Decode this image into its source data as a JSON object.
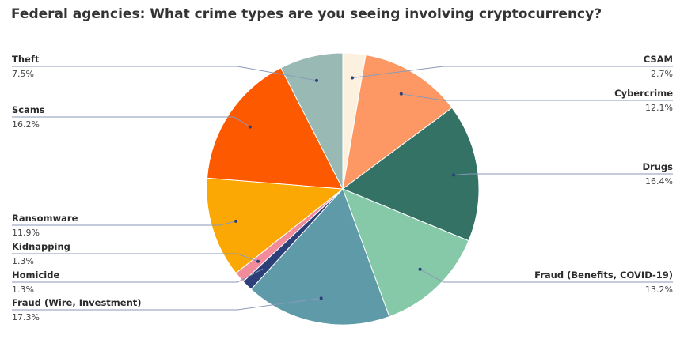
{
  "chart_data": {
    "type": "pie",
    "title": "Federal agencies: What crime types are you seeing involving cryptocurrency?",
    "slices": [
      {
        "label": "CSAM",
        "percent_label": "2.7%",
        "value": 2.7,
        "color": "#fcf1df",
        "side": "right"
      },
      {
        "label": "Cybercrime",
        "percent_label": "12.1%",
        "value": 12.1,
        "color": "#fd9865",
        "side": "right"
      },
      {
        "label": "Drugs",
        "percent_label": "16.4%",
        "value": 16.4,
        "color": "#337265",
        "side": "right"
      },
      {
        "label": "Fraud (Benefits, COVID-19)",
        "percent_label": "13.2%",
        "value": 13.2,
        "color": "#85c9a8",
        "side": "right"
      },
      {
        "label": "Fraud (Wire, Investment)",
        "percent_label": "17.3%",
        "value": 17.3,
        "color": "#5f9aa8",
        "side": "left"
      },
      {
        "label": "Homicide",
        "percent_label": "1.3%",
        "value": 1.3,
        "color": "#2c3f78",
        "side": "left"
      },
      {
        "label": "Kidnapping",
        "percent_label": "1.3%",
        "value": 1.3,
        "color": "#f28b9a",
        "side": "left"
      },
      {
        "label": "Ransomware",
        "percent_label": "11.9%",
        "value": 11.9,
        "color": "#fba804",
        "side": "left"
      },
      {
        "label": "Scams",
        "percent_label": "16.2%",
        "value": 16.2,
        "color": "#fd5900",
        "side": "left"
      },
      {
        "label": "Theft",
        "percent_label": "7.5%",
        "value": 7.5,
        "color": "#99b9b5",
        "side": "left"
      }
    ]
  }
}
